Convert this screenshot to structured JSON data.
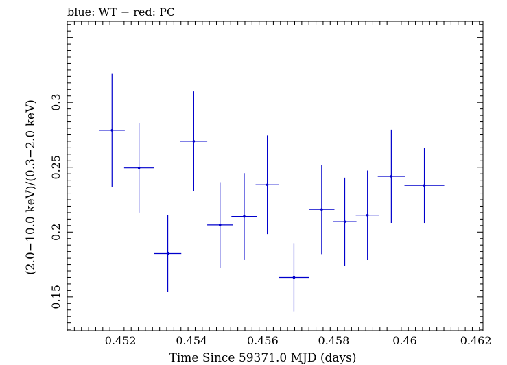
{
  "chart_data": {
    "type": "scatter",
    "title": "blue: WT − red: PC",
    "xlabel": "Time Since 59371.0 MJD (days)",
    "ylabel": "(2.0−10.0 keV)/(0.3−2.0 keV)",
    "xlim": [
      0.4505,
      0.4622
    ],
    "ylim": [
      0.124,
      0.3625
    ],
    "x_ticks": [
      0.452,
      0.454,
      0.456,
      0.458,
      0.46,
      0.462
    ],
    "x_tick_labels": [
      "0.452",
      "0.454",
      "0.456",
      "0.458",
      "0.46",
      "0.462"
    ],
    "y_ticks": [
      0.15,
      0.2,
      0.25,
      0.3
    ],
    "y_tick_labels": [
      "0.15",
      "0.2",
      "0.25",
      "0.3"
    ],
    "grid": false,
    "legend": "none",
    "series": [
      {
        "color": "#0000cc",
        "points": [
          {
            "x": 0.45176,
            "xerr": 0.00036,
            "y": 0.2785,
            "yerr": 0.0435
          },
          {
            "x": 0.45252,
            "xerr": 0.00042,
            "y": 0.2495,
            "yerr": 0.0345
          },
          {
            "x": 0.45333,
            "xerr": 0.00038,
            "y": 0.1835,
            "yerr": 0.0295
          },
          {
            "x": 0.45406,
            "xerr": 0.00038,
            "y": 0.27,
            "yerr": 0.0385
          },
          {
            "x": 0.4548,
            "xerr": 0.00036,
            "y": 0.2055,
            "yerr": 0.033
          },
          {
            "x": 0.45548,
            "xerr": 0.00036,
            "y": 0.212,
            "yerr": 0.0335
          },
          {
            "x": 0.45613,
            "xerr": 0.00033,
            "y": 0.2365,
            "yerr": 0.038
          },
          {
            "x": 0.45688,
            "xerr": 0.00042,
            "y": 0.165,
            "yerr": 0.0265
          },
          {
            "x": 0.45766,
            "xerr": 0.00036,
            "y": 0.2175,
            "yerr": 0.0345
          },
          {
            "x": 0.45831,
            "xerr": 0.00033,
            "y": 0.208,
            "yerr": 0.034
          },
          {
            "x": 0.45895,
            "xerr": 0.00033,
            "y": 0.213,
            "yerr": 0.0345
          },
          {
            "x": 0.45962,
            "xerr": 0.00038,
            "y": 0.243,
            "yerr": 0.036
          },
          {
            "x": 0.46055,
            "xerr": 0.00056,
            "y": 0.236,
            "yerr": 0.029
          }
        ]
      }
    ]
  }
}
